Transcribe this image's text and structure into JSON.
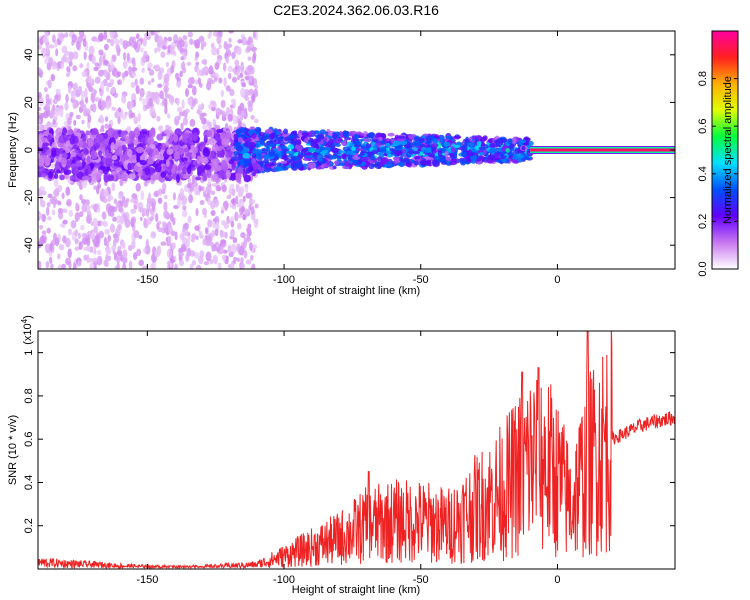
{
  "chart_data": [
    {
      "type": "heatmap",
      "title": "C2E3.2024.362.06.03.R16",
      "xlabel": "Height of straight line (km)",
      "ylabel": "Frequency (Hz)",
      "xlim": [
        -190,
        43
      ],
      "ylim": [
        -50,
        50
      ],
      "x_ticks": [
        -150,
        -100,
        -50,
        0
      ],
      "y_ticks": [
        -40,
        -20,
        0,
        20,
        40
      ],
      "colorbar": {
        "label": "Normalized spectral amplitude",
        "range": [
          0,
          1
        ],
        "ticks": [
          0.0,
          0.2,
          0.4,
          0.6,
          0.8
        ],
        "colormap": [
          "#ffffff",
          "#c878f0",
          "#6400ff",
          "#0050ff",
          "#00e0ff",
          "#00ff40",
          "#e0ff00",
          "#ffb000",
          "#ff2020",
          "#ff00a0"
        ]
      },
      "features": [
        {
          "x_range": [
            -190,
            -110
          ],
          "freq_range": [
            -50,
            50
          ],
          "amplitude": 0.05,
          "note_free": true
        },
        {
          "x_range": [
            -190,
            -110
          ],
          "freq_range": [
            -12,
            8
          ],
          "amplitude": 0.15
        },
        {
          "x_range": [
            -118,
            -10
          ],
          "freq_range": [
            -10,
            8
          ],
          "amplitude": 0.35
        },
        {
          "x_range": [
            -10,
            43
          ],
          "freq_center": 0,
          "amplitude": 0.95
        }
      ]
    },
    {
      "type": "line",
      "title": "",
      "xlabel": "Height of straight line (km)",
      "ylabel": "SNR (10 * v/v)",
      "y_multiplier": "(x10^4)",
      "y_multiplier_base": "(x10",
      "y_multiplier_exp": "4",
      "y_multiplier_close": ")",
      "xlim": [
        -190,
        43
      ],
      "ylim": [
        0,
        1.1
      ],
      "x_ticks": [
        -150,
        -100,
        -50,
        0
      ],
      "y_ticks": [
        0.2,
        0.4,
        0.6,
        0.8,
        1
      ],
      "series_color": "#ee2222",
      "series": [
        {
          "x": [
            -190,
            -170,
            -150,
            -130,
            -110,
            -100,
            -90,
            -80,
            -70,
            -60,
            -50,
            -40,
            -30,
            -20,
            -15,
            -10,
            -5,
            0,
            5,
            10,
            15,
            20,
            25,
            30,
            35,
            43
          ],
          "values": [
            0.03,
            0.02,
            0.01,
            0.01,
            0.02,
            0.06,
            0.1,
            0.14,
            0.2,
            0.22,
            0.22,
            0.2,
            0.28,
            0.36,
            0.42,
            0.5,
            0.5,
            0.42,
            0.3,
            0.45,
            0.55,
            0.6,
            0.63,
            0.66,
            0.68,
            0.7
          ],
          "peaks": [
            {
              "x": -69,
              "y": 0.45
            },
            {
              "x": -13,
              "y": 0.91
            },
            {
              "x": -7,
              "y": 0.93
            },
            {
              "x": 11,
              "y": 1.1
            }
          ]
        }
      ]
    }
  ]
}
